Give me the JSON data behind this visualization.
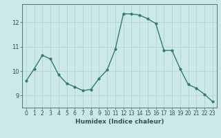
{
  "x": [
    0,
    1,
    2,
    3,
    4,
    5,
    6,
    7,
    8,
    9,
    10,
    11,
    12,
    13,
    14,
    15,
    16,
    17,
    18,
    19,
    20,
    21,
    22,
    23
  ],
  "y": [
    9.6,
    10.1,
    10.65,
    10.5,
    9.85,
    9.5,
    9.35,
    9.2,
    9.25,
    9.7,
    10.05,
    10.9,
    12.35,
    12.35,
    12.3,
    12.15,
    11.95,
    10.85,
    10.85,
    10.1,
    9.45,
    9.3,
    9.05,
    8.75
  ],
  "line_color": "#2e7d6e",
  "marker": "o",
  "marker_size": 2.0,
  "linewidth": 1.0,
  "xlabel": "Humidex (Indice chaleur)",
  "bg_color": "#cde8e8",
  "grid_color": "#aed0d0",
  "xlim": [
    -0.5,
    23.5
  ],
  "ylim": [
    8.5,
    12.75
  ],
  "yticks": [
    9,
    10,
    11,
    12
  ],
  "xticks": [
    0,
    1,
    2,
    3,
    4,
    5,
    6,
    7,
    8,
    9,
    10,
    11,
    12,
    13,
    14,
    15,
    16,
    17,
    18,
    19,
    20,
    21,
    22,
    23
  ],
  "tick_color": "#336666",
  "label_color": "#2a5555",
  "tick_fontsize": 5.5,
  "xlabel_fontsize": 6.5
}
